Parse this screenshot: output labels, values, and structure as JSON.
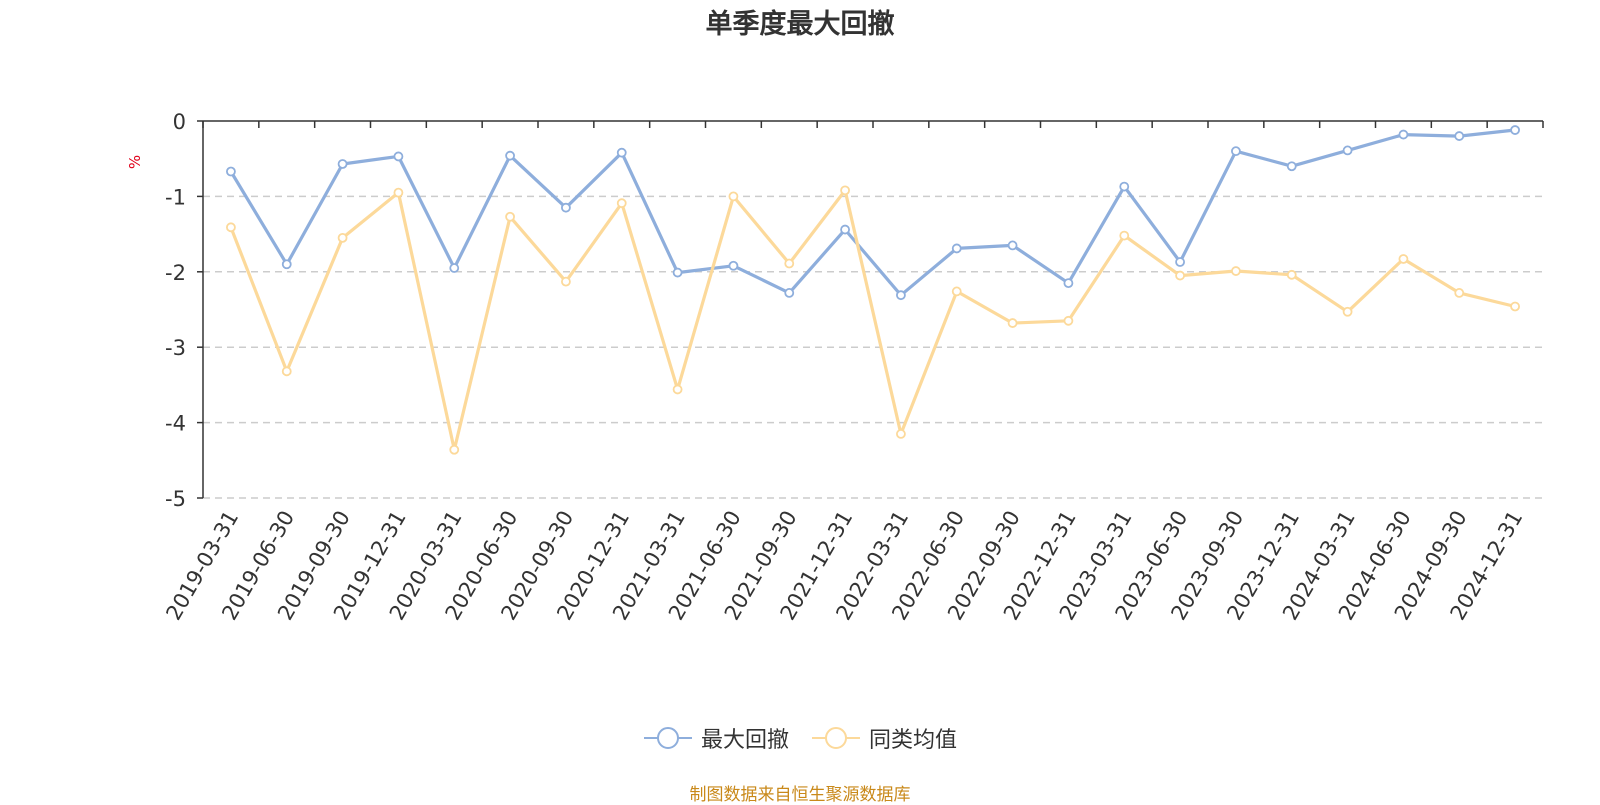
{
  "chart_data": {
    "type": "line",
    "title": "单季度最大回撤",
    "ylabel": "%",
    "ylim": [
      -5,
      0
    ],
    "yticks": [
      0,
      -1,
      -2,
      -3,
      -4,
      -5
    ],
    "categories": [
      "2019-03-31",
      "2019-06-30",
      "2019-09-30",
      "2019-12-31",
      "2020-03-31",
      "2020-06-30",
      "2020-09-30",
      "2020-12-31",
      "2021-03-31",
      "2021-06-30",
      "2021-09-30",
      "2021-12-31",
      "2022-03-31",
      "2022-06-30",
      "2022-09-30",
      "2022-12-31",
      "2023-03-31",
      "2023-06-30",
      "2023-09-30",
      "2023-12-31",
      "2024-03-31",
      "2024-06-30",
      "2024-09-30",
      "2024-12-31"
    ],
    "series": [
      {
        "name": "最大回撤",
        "color": "#8eaedc",
        "values": [
          -0.67,
          -1.9,
          -0.57,
          -0.47,
          -1.95,
          -0.46,
          -1.15,
          -0.42,
          -2.01,
          -1.92,
          -2.28,
          -1.44,
          -2.31,
          -1.69,
          -1.65,
          -2.15,
          -0.87,
          -1.87,
          -0.4,
          -0.6,
          -0.39,
          -0.18,
          -0.2,
          -0.12
        ]
      },
      {
        "name": "同类均值",
        "color": "#fcd99a",
        "values": [
          -1.41,
          -3.32,
          -1.55,
          -0.95,
          -4.36,
          -1.27,
          -2.13,
          -1.09,
          -3.56,
          -1.0,
          -1.89,
          -0.92,
          -4.15,
          -2.26,
          -2.68,
          -2.65,
          -1.52,
          -2.05,
          -1.99,
          -2.04,
          -2.53,
          -1.83,
          -2.28,
          -2.46
        ]
      }
    ],
    "grid": true,
    "legend_position": "bottom"
  },
  "source_text": "制图数据来自恒生聚源数据库"
}
